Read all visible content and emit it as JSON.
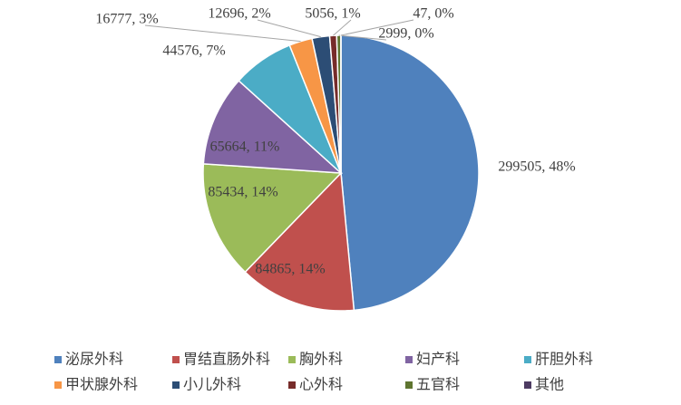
{
  "chart_data": {
    "type": "pie",
    "categories": [
      "泌尿外科",
      "胃结直肠外科",
      "胸外科",
      "妇产科",
      "肝胆外科",
      "甲状腺外科",
      "小儿外科",
      "心外科",
      "五官科",
      "其他"
    ],
    "values": [
      299505,
      84865,
      85434,
      65664,
      44576,
      16777,
      12696,
      5056,
      2999,
      47
    ],
    "value_labels": [
      "299505, 48%",
      "84865, 14%",
      "85434, 14%",
      "65664, 11%",
      "44576, 7%",
      "16777, 3%",
      "12696, 2%",
      "5056, 1%",
      "2999, 0%",
      "47, 0%"
    ],
    "colors": [
      "#4f81bd",
      "#c0504d",
      "#9bbb59",
      "#8064a2",
      "#4bacc6",
      "#f79646",
      "#2c4d75",
      "#772c2a",
      "#5f7530",
      "#4d3b62"
    ],
    "legend": "bottom"
  }
}
